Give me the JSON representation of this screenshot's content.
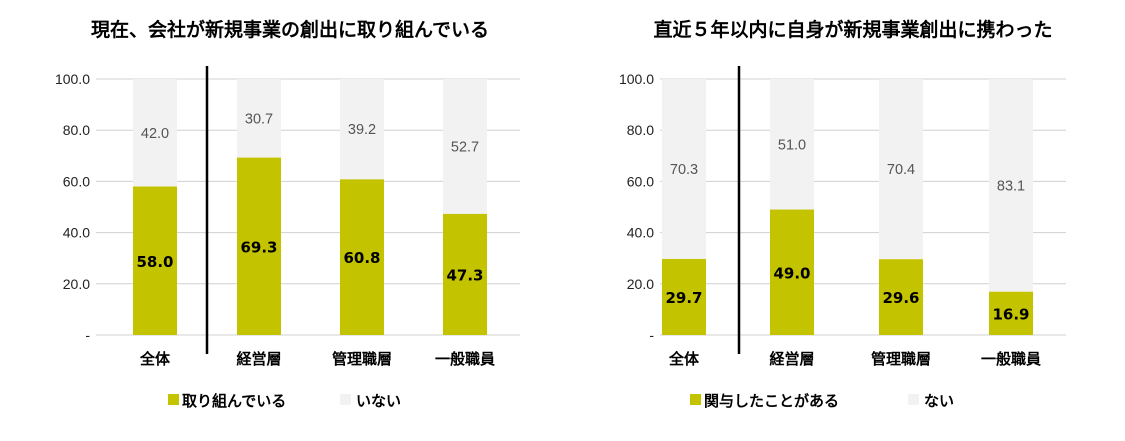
{
  "chart_data": [
    {
      "type": "bar",
      "stacked": true,
      "title": "現在、会社が新規事業の創出に取り組んでいる",
      "categories": [
        "全体",
        "経営層",
        "管理職層",
        "一般職員"
      ],
      "series": [
        {
          "name": "取り組んでいる",
          "values": [
            58.0,
            69.3,
            60.8,
            47.3
          ],
          "labels": [
            "58.0",
            "69.3",
            "60.8",
            "47.3"
          ]
        },
        {
          "name": "いない",
          "values": [
            42.0,
            30.7,
            39.2,
            52.7
          ],
          "labels": [
            "42.0",
            "30.7",
            "39.2",
            "52.7"
          ]
        }
      ],
      "ylim": [
        0,
        100
      ],
      "yticks": [
        "-",
        "20.0",
        "40.0",
        "60.0",
        "80.0",
        "100.0"
      ],
      "grid": true,
      "legend": "bottom"
    },
    {
      "type": "bar",
      "stacked": true,
      "title": "直近５年以内に自身が新規事業創出に携わった",
      "categories": [
        "全体",
        "経営層",
        "管理職層",
        "一般職員"
      ],
      "series": [
        {
          "name": "関与したことがある",
          "values": [
            29.7,
            49.0,
            29.6,
            16.9
          ],
          "labels": [
            "29.7",
            "49.0",
            "29.6",
            "16.9"
          ]
        },
        {
          "name": "ない",
          "values": [
            70.3,
            51.0,
            70.4,
            83.1
          ],
          "labels": [
            "70.3",
            "51.0",
            "70.4",
            "83.1"
          ]
        }
      ],
      "ylim": [
        0,
        100
      ],
      "yticks": [
        "-",
        "20.0",
        "40.0",
        "60.0",
        "80.0",
        "100.0"
      ],
      "grid": true,
      "legend": "bottom"
    }
  ],
  "colors": {
    "primary": "#C4C300",
    "secondary": "#F2F2F2",
    "grid": "#D0D0D0",
    "divider": "#000000"
  }
}
